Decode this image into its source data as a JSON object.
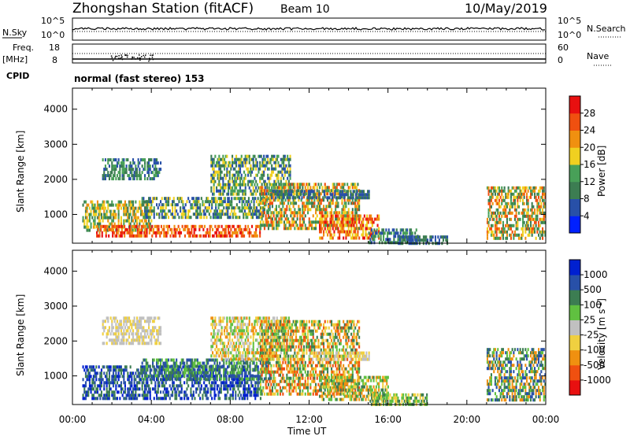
{
  "header": {
    "station": "Zhongshan Station (fitACF)",
    "beam": "Beam 10",
    "date": "10/May/2019",
    "cpid_label": "CPID",
    "cpid_value": "normal (fast stereo) 153"
  },
  "nsky_panel": {
    "left_label": "N.Sky",
    "right_label": "N.Search",
    "left_ticks": [
      "10^5",
      "10^0"
    ],
    "right_ticks": [
      "10^5",
      "10^0"
    ]
  },
  "freq_panel": {
    "left_label_1": "Freq.",
    "left_label_2": "[MHz]",
    "right_label": "Nave",
    "left_ticks": [
      "18",
      "8"
    ],
    "right_ticks": [
      "60",
      "0"
    ]
  },
  "colors": {
    "power": [
      "#0020ff",
      "#2850a8",
      "#3c7d52",
      "#48a058",
      "#f0d020",
      "#f09010",
      "#f05010",
      "#e81010"
    ],
    "velocity": [
      "#e81010",
      "#f05010",
      "#f09010",
      "#f0d040",
      "#c0c0c0",
      "#60c040",
      "#3c7d52",
      "#2850a8",
      "#0020d0"
    ]
  },
  "chart_data": [
    {
      "type": "heatmap",
      "name": "power",
      "xlabel": "",
      "ylabel": "Slant Range [km]",
      "colorbar_label": "Power [dB]",
      "colorbar_ticks": [
        "4",
        "8",
        "12",
        "16",
        "20",
        "24",
        "28"
      ],
      "yticks": [
        "1000",
        "2000",
        "3000",
        "4000"
      ],
      "ylim": [
        180,
        4600
      ],
      "xlim_hours": [
        0,
        24
      ],
      "regions": [
        {
          "t": [
            0.5,
            4.0
          ],
          "r": [
            550,
            1400
          ],
          "level": [
            4,
            5,
            3,
            2
          ]
        },
        {
          "t": [
            1.2,
            9.5
          ],
          "r": [
            350,
            700
          ],
          "level": [
            7,
            6,
            5
          ]
        },
        {
          "t": [
            1.5,
            4.5
          ],
          "r": [
            2000,
            2600
          ],
          "level": [
            1,
            2,
            3
          ]
        },
        {
          "t": [
            3.5,
            10.0
          ],
          "r": [
            900,
            1500
          ],
          "level": [
            3,
            4,
            2,
            1
          ]
        },
        {
          "t": [
            7.0,
            11.0
          ],
          "r": [
            1600,
            2700
          ],
          "level": [
            1,
            2,
            3,
            4
          ]
        },
        {
          "t": [
            9.5,
            14.5
          ],
          "r": [
            600,
            1900
          ],
          "level": [
            2,
            3,
            4,
            5,
            6
          ]
        },
        {
          "t": [
            12.5,
            15.5
          ],
          "r": [
            300,
            1000
          ],
          "level": [
            5,
            6,
            7,
            4
          ]
        },
        {
          "t": [
            10.0,
            15.0
          ],
          "r": [
            1500,
            1700
          ],
          "level": [
            1,
            2
          ]
        },
        {
          "t": [
            15.0,
            17.5
          ],
          "r": [
            200,
            600
          ],
          "level": [
            1,
            2,
            3
          ]
        },
        {
          "t": [
            16.5,
            19.0
          ],
          "r": [
            200,
            400
          ],
          "level": [
            1,
            2
          ]
        },
        {
          "t": [
            21.0,
            24.0
          ],
          "r": [
            350,
            1800
          ],
          "level": [
            3,
            4,
            5,
            2,
            6
          ]
        }
      ],
      "xticks": [
        "00:00",
        "04:00",
        "08:00",
        "12:00",
        "16:00",
        "20:00",
        "00:00"
      ]
    },
    {
      "type": "heatmap",
      "name": "velocity",
      "xlabel": "Time UT",
      "ylabel": "Slant Range [km]",
      "colorbar_label": "Velocity [m s^-1]",
      "colorbar_ticks": [
        "-1000",
        "-500",
        "-100",
        "-25",
        "25",
        "100",
        "500",
        "1000"
      ],
      "yticks": [
        "1000",
        "2000",
        "3000",
        "4000"
      ],
      "ylim": [
        180,
        4600
      ],
      "xlim_hours": [
        0,
        24
      ],
      "regions": [
        {
          "t": [
            0.5,
            9.5
          ],
          "r": [
            350,
            1300
          ],
          "level": [
            8,
            7,
            6
          ]
        },
        {
          "t": [
            1.5,
            4.5
          ],
          "r": [
            1900,
            2700
          ],
          "level": [
            4,
            4,
            3
          ]
        },
        {
          "t": [
            3.5,
            10.0
          ],
          "r": [
            900,
            1500
          ],
          "level": [
            7,
            6,
            5
          ]
        },
        {
          "t": [
            7.0,
            11.0
          ],
          "r": [
            1500,
            2700
          ],
          "level": [
            4,
            3,
            5,
            2
          ]
        },
        {
          "t": [
            9.5,
            14.5
          ],
          "r": [
            500,
            2600
          ],
          "level": [
            2,
            1,
            3,
            5,
            6
          ]
        },
        {
          "t": [
            12.5,
            16.0
          ],
          "r": [
            300,
            1000
          ],
          "level": [
            5,
            6,
            3,
            2
          ]
        },
        {
          "t": [
            12.0,
            15.0
          ],
          "r": [
            1500,
            1700
          ],
          "level": [
            4,
            3
          ]
        },
        {
          "t": [
            15.0,
            18.0
          ],
          "r": [
            200,
            500
          ],
          "level": [
            5,
            6,
            3
          ]
        },
        {
          "t": [
            21.0,
            24.0
          ],
          "r": [
            350,
            1800
          ],
          "level": [
            6,
            7,
            5,
            2
          ]
        }
      ],
      "xticks": [
        "00:00",
        "04:00",
        "08:00",
        "12:00",
        "16:00",
        "20:00",
        "00:00"
      ]
    }
  ]
}
